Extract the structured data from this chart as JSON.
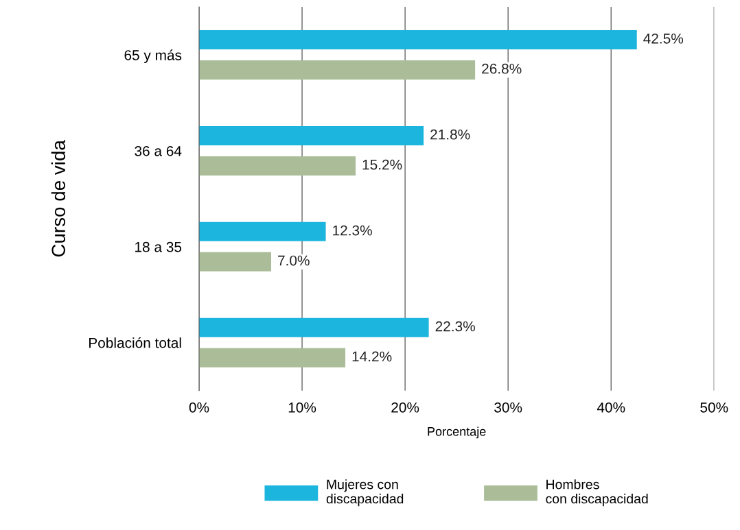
{
  "chart_data": {
    "type": "bar",
    "orientation": "horizontal",
    "ylabel": "Curso de vida",
    "xlabel": "Porcentaje",
    "categories": [
      "65 y más",
      "36 a 64",
      "18 a 35",
      "Población total"
    ],
    "series": [
      {
        "name": "Mujeres con\ndiscapacidad",
        "color": "#1cb5de",
        "values": [
          42.5,
          21.8,
          12.3,
          22.3
        ],
        "value_labels": [
          "42.5%",
          "21.8%",
          "12.3%",
          "22.3%"
        ]
      },
      {
        "name": "Hombres\ncon discapacidad",
        "color": "#aabd98",
        "values": [
          26.8,
          15.2,
          7.0,
          14.2
        ],
        "value_labels": [
          "26.8%",
          "15.2%",
          "7.0%",
          "14.2%"
        ]
      }
    ],
    "xlim": [
      0,
      50
    ],
    "xticks": [
      {
        "value": 0,
        "label": "0%"
      },
      {
        "value": 10,
        "label": "10%"
      },
      {
        "value": 20,
        "label": "20%"
      },
      {
        "value": 30,
        "label": "30%"
      },
      {
        "value": 40,
        "label": "40%"
      },
      {
        "value": 50,
        "label": "50%"
      }
    ],
    "grid": "x",
    "legend": "bottom"
  }
}
